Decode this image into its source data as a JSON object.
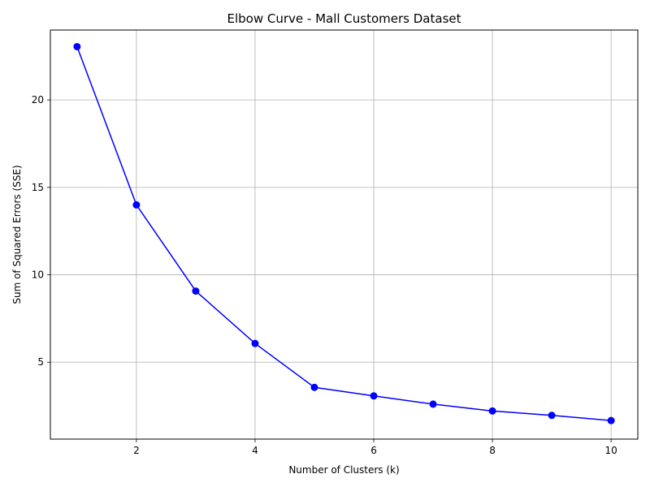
{
  "chart_data": {
    "type": "line",
    "title": "Elbow Curve - Mall Customers Dataset",
    "xlabel": "Number of Clusters (k)",
    "ylabel": "Sum of Squared Errors (SSE)",
    "x": [
      1,
      2,
      3,
      4,
      5,
      6,
      7,
      8,
      9,
      10
    ],
    "series": [
      {
        "values": [
          23.05,
          14.0,
          9.07,
          6.07,
          3.56,
          3.07,
          2.6,
          2.21,
          1.96,
          1.66
        ],
        "color": "#0000ff",
        "marker": "circle"
      }
    ],
    "xlim": [
      0.55,
      10.45
    ],
    "ylim": [
      0.6,
      24.0
    ],
    "xticks": [
      2,
      4,
      6,
      8,
      10
    ],
    "yticks": [
      5,
      10,
      15,
      20
    ],
    "grid": true,
    "grid_color": "#b0b0b0"
  }
}
